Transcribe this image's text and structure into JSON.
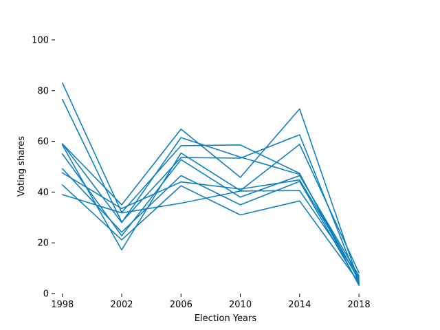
{
  "chart_data": {
    "type": "line",
    "title": "",
    "xlabel": "Election Years",
    "ylabel": "Voting shares",
    "x": [
      1998,
      2002,
      2006,
      2010,
      2014,
      2018
    ],
    "xlim": [
      1997.5,
      2020.5
    ],
    "ylim": [
      0,
      100
    ],
    "yticks": [
      0,
      20,
      40,
      60,
      80,
      100
    ],
    "xticks": [
      1998,
      2002,
      2006,
      2010,
      2014,
      2018
    ],
    "grid": false,
    "line_color": "#0e7fbd",
    "series": [
      {
        "values": [
          83.0,
          32.0,
          58.3,
          58.6,
          47.4,
          3.2
        ]
      },
      {
        "values": [
          76.5,
          28.2,
          53.6,
          53.4,
          62.6,
          4.0
        ]
      },
      {
        "values": [
          59.0,
          35.0,
          64.8,
          45.8,
          72.8,
          4.6
        ]
      },
      {
        "values": [
          59.0,
          28.0,
          61.5,
          53.8,
          47.0,
          5.2
        ]
      },
      {
        "values": [
          58.5,
          17.2,
          55.4,
          40.6,
          58.8,
          8.2
        ]
      },
      {
        "values": [
          55.0,
          22.8,
          52.8,
          38.0,
          46.5,
          7.0
        ]
      },
      {
        "values": [
          49.2,
          24.2,
          46.5,
          35.0,
          44.2,
          3.7
        ]
      },
      {
        "values": [
          47.6,
          33.5,
          44.0,
          41.2,
          44.8,
          5.8
        ]
      },
      {
        "values": [
          42.8,
          21.2,
          42.5,
          31.0,
          36.5,
          4.4
        ]
      },
      {
        "values": [
          39.0,
          31.8,
          35.6,
          40.4,
          40.6,
          6.4
        ]
      }
    ]
  }
}
